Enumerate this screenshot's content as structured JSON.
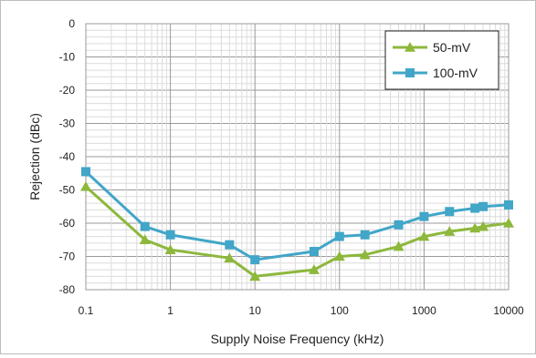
{
  "chart_data": {
    "type": "line",
    "title": "",
    "xlabel": "Supply Noise Frequency (kHz)",
    "ylabel": "Rejection (dBc)",
    "xscale": "log",
    "xlim": [
      0.1,
      10000
    ],
    "ylim": [
      -80,
      0
    ],
    "grid": true,
    "minor_grid": true,
    "legend": "top-right",
    "x_ticks": [
      "0.1",
      "1",
      "10",
      "100",
      "1000",
      "10000"
    ],
    "y_ticks": [
      "0",
      "-10",
      "-20",
      "-30",
      "-40",
      "-50",
      "-60",
      "-70",
      "-80"
    ],
    "series": [
      {
        "name": "50-mV",
        "color": "#8db83c",
        "marker": "triangle",
        "x": [
          0.1,
          0.5,
          1,
          5,
          10,
          50,
          100,
          200,
          500,
          1000,
          2000,
          4000,
          5000,
          10000
        ],
        "y": [
          -49,
          -65,
          -68,
          -70.5,
          -76,
          -74,
          -70,
          -69.5,
          -67,
          -64,
          -62.5,
          -61.5,
          -61,
          -60
        ]
      },
      {
        "name": "100-mV",
        "color": "#41a6c8",
        "marker": "square",
        "x": [
          0.1,
          0.5,
          1,
          5,
          10,
          50,
          100,
          200,
          500,
          1000,
          2000,
          4000,
          5000,
          10000
        ],
        "y": [
          -44.5,
          -61,
          -63.5,
          -66.5,
          -71,
          -68.5,
          -64,
          -63.5,
          -60.5,
          -58,
          -56.5,
          -55.5,
          -55,
          -54.5
        ]
      }
    ]
  }
}
